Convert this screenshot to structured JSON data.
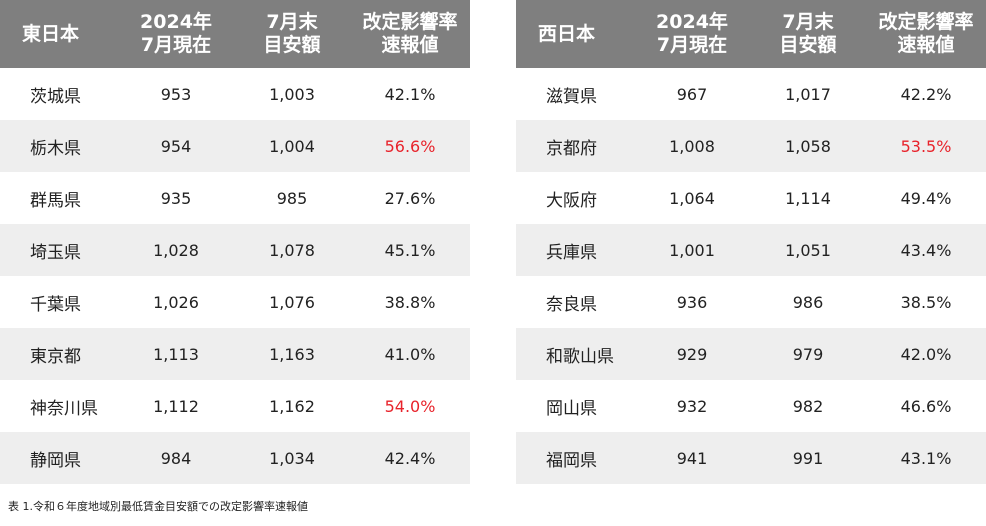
{
  "east": {
    "header": {
      "region": "東日本",
      "col2": [
        "2024年",
        "7月現在"
      ],
      "col3": [
        "7月末",
        "目安額"
      ],
      "col4": [
        "改定影響率",
        "速報値"
      ]
    },
    "rows": [
      {
        "pref": "茨城県",
        "current": "953",
        "target": "1,003",
        "rate": "42.1%",
        "highlight": false
      },
      {
        "pref": "栃木県",
        "current": "954",
        "target": "1,004",
        "rate": "56.6%",
        "highlight": true
      },
      {
        "pref": "群馬県",
        "current": "935",
        "target": "985",
        "rate": "27.6%",
        "highlight": false
      },
      {
        "pref": "埼玉県",
        "current": "1,028",
        "target": "1,078",
        "rate": "45.1%",
        "highlight": false
      },
      {
        "pref": "千葉県",
        "current": "1,026",
        "target": "1,076",
        "rate": "38.8%",
        "highlight": false
      },
      {
        "pref": "東京都",
        "current": "1,113",
        "target": "1,163",
        "rate": "41.0%",
        "highlight": false
      },
      {
        "pref": "神奈川県",
        "current": "1,112",
        "target": "1,162",
        "rate": "54.0%",
        "highlight": true
      },
      {
        "pref": "静岡県",
        "current": "984",
        "target": "1,034",
        "rate": "42.4%",
        "highlight": false
      }
    ]
  },
  "west": {
    "header": {
      "region": "西日本",
      "col2": [
        "2024年",
        "7月現在"
      ],
      "col3": [
        "7月末",
        "目安額"
      ],
      "col4": [
        "改定影響率",
        "速報値"
      ]
    },
    "rows": [
      {
        "pref": "滋賀県",
        "current": "967",
        "target": "1,017",
        "rate": "42.2%",
        "highlight": false
      },
      {
        "pref": "京都府",
        "current": "1,008",
        "target": "1,058",
        "rate": "53.5%",
        "highlight": true
      },
      {
        "pref": "大阪府",
        "current": "1,064",
        "target": "1,114",
        "rate": "49.4%",
        "highlight": false
      },
      {
        "pref": "兵庫県",
        "current": "1,001",
        "target": "1,051",
        "rate": "43.4%",
        "highlight": false
      },
      {
        "pref": "奈良県",
        "current": "936",
        "target": "986",
        "rate": "38.5%",
        "highlight": false
      },
      {
        "pref": "和歌山県",
        "current": "929",
        "target": "979",
        "rate": "42.0%",
        "highlight": false
      },
      {
        "pref": "岡山県",
        "current": "932",
        "target": "982",
        "rate": "46.6%",
        "highlight": false
      },
      {
        "pref": "福岡県",
        "current": "941",
        "target": "991",
        "rate": "43.1%",
        "highlight": false
      }
    ]
  },
  "caption": "表 1.令和６年度地域別最低賃金目安額での改定影響率速報値",
  "colors": {
    "header_bg": "#7f7f7f",
    "stripe_bg": "#eeeeee",
    "highlight_text": "#e8232b"
  }
}
